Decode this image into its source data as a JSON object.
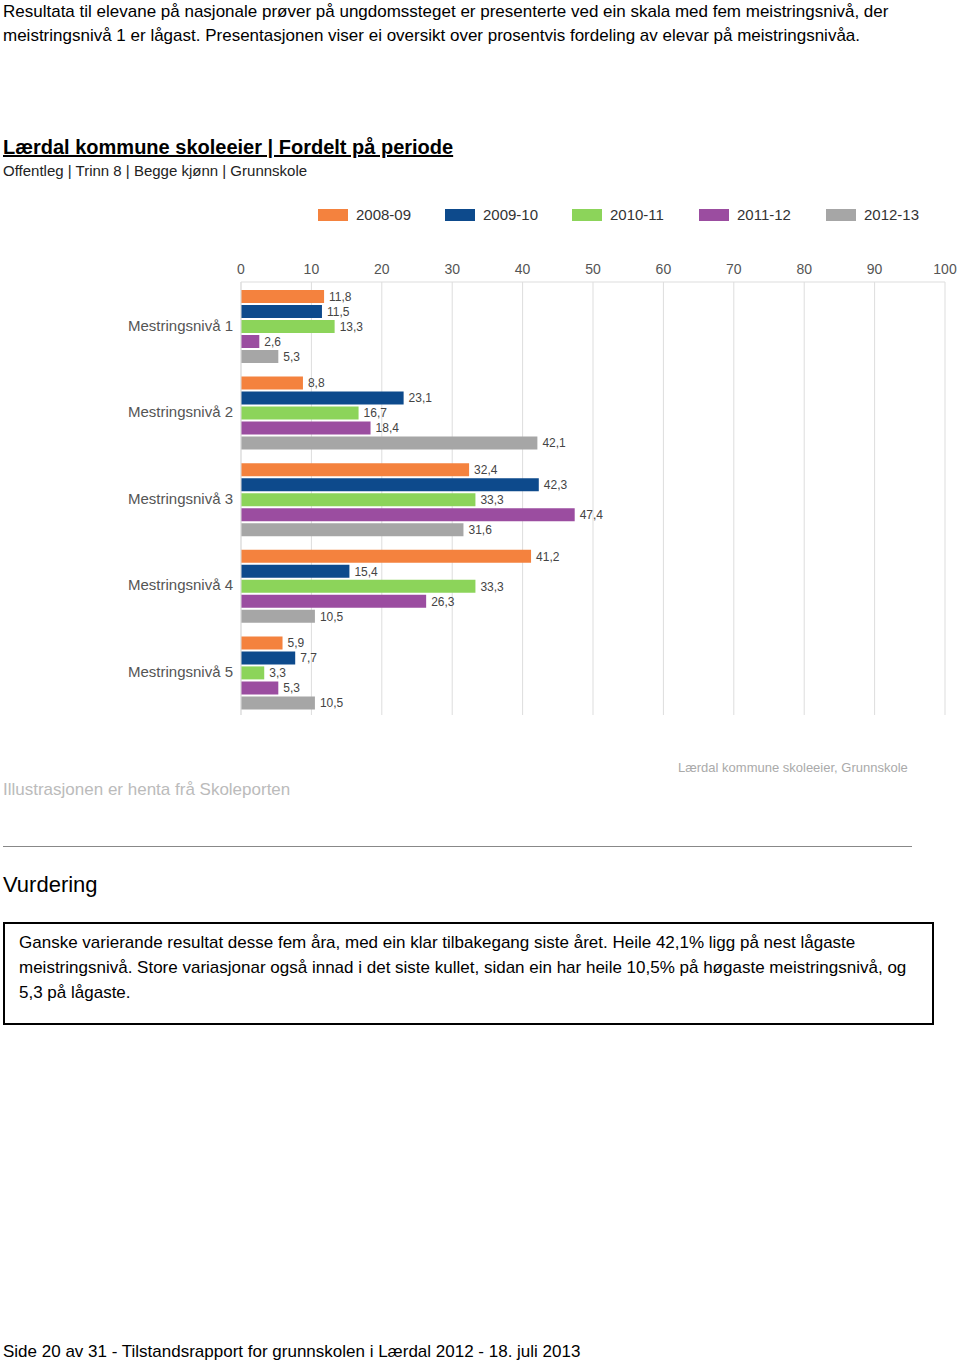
{
  "intro": "Resultata til elevane på nasjonale prøver på ungdomssteget er presenterte ved ein skala med fem meistringsnivå, der meistringsnivå 1 er lågast. Presentasjonen viser ei oversikt over prosentvis fordeling av elevar på meistringsnivåa.",
  "chart_data": {
    "type": "bar",
    "orientation": "horizontal",
    "title": "Lærdal kommune skoleeier | Fordelt på periode",
    "subtitle": "Offentleg | Trinn 8 | Begge kjønn | Grunnskole",
    "categories": [
      "Mestringsnivå 1",
      "Mestringsnivå 2",
      "Mestringsnivå 3",
      "Mestringsnivå 4",
      "Mestringsnivå 5"
    ],
    "series": [
      {
        "name": "2008-09",
        "color": "#f4823e",
        "values": [
          11.8,
          8.8,
          32.4,
          41.2,
          5.9
        ],
        "value_labels": [
          "11,8",
          "8,8",
          "32,4",
          "41,2",
          "5,9"
        ]
      },
      {
        "name": "2009-10",
        "color": "#0d4a8c",
        "values": [
          11.5,
          23.1,
          42.3,
          15.4,
          7.7
        ],
        "value_labels": [
          "11,5",
          "23,1",
          "42,3",
          "15,4",
          "7,7"
        ]
      },
      {
        "name": "2010-11",
        "color": "#8cd45a",
        "values": [
          13.3,
          16.7,
          33.3,
          33.3,
          3.3
        ],
        "value_labels": [
          "13,3",
          "16,7",
          "33,3",
          "33,3",
          "3,3"
        ]
      },
      {
        "name": "2011-12",
        "color": "#9b4da0",
        "values": [
          2.6,
          18.4,
          47.4,
          26.3,
          5.3
        ],
        "value_labels": [
          "2,6",
          "18,4",
          "47,4",
          "26,3",
          "5,3"
        ]
      },
      {
        "name": "2012-13",
        "color": "#a6a6a6",
        "values": [
          5.3,
          42.1,
          31.6,
          10.5,
          10.5
        ],
        "value_labels": [
          "5,3",
          "42,1",
          "31,6",
          "10,5",
          "10,5"
        ]
      }
    ],
    "xlim": [
      0,
      100
    ],
    "xticks": [
      0,
      10,
      20,
      30,
      40,
      50,
      60,
      70,
      80,
      90,
      100
    ],
    "grid": true,
    "data_labels": true,
    "legend": "top"
  },
  "caption": "Illustrasjonen er henta frå Skoleporten",
  "source_note": "Lærdal kommune skoleeier, Grunnskole",
  "assessment": {
    "title": "Vurdering",
    "text": "Ganske varierande resultat desse fem åra, med ein klar tilbakegang siste året. Heile 42,1% ligg på nest lågaste meistringsnivå. Store variasjonar også innad i det siste kullet, sidan ein har heile 10,5% på høgaste meistringsnivå, og 5,3 på lågaste."
  },
  "footer": "Side 20 av 31 - Tilstandsrapport for grunnskolen i Lærdal 2012 - 18. juli 2013"
}
